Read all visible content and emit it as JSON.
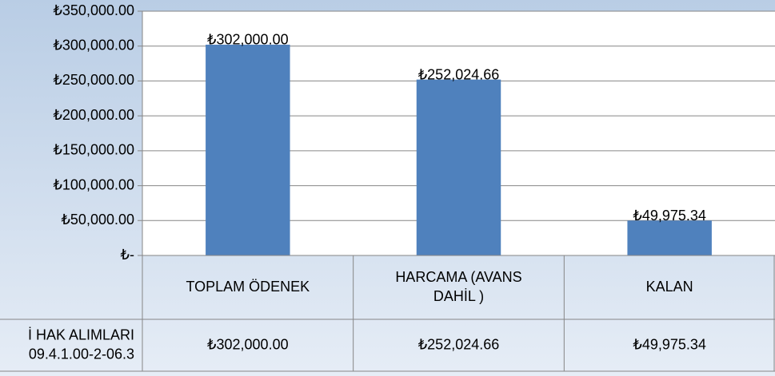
{
  "chart_data": {
    "type": "bar",
    "categories": [
      "TOPLAM ÖDENEK",
      "HARCAMA (AVANS\nDAHİL )",
      "KALAN"
    ],
    "series": [
      {
        "name": "İ HAK ALIMLARI\n09.4.1.00-2-06.3",
        "color": "#4f81bd",
        "values": [
          302000,
          252024.66,
          49975.34
        ],
        "value_labels": [
          "₺302,000.00",
          "₺252,024.66",
          "₺49,975.34"
        ]
      }
    ],
    "ylim": [
      0,
      350000
    ],
    "yticks": [
      {
        "value": 0,
        "label": "₺-"
      },
      {
        "value": 50000,
        "label": "₺50,000.00"
      },
      {
        "value": 100000,
        "label": "₺100,000.00"
      },
      {
        "value": 150000,
        "label": "₺150,000.00"
      },
      {
        "value": 200000,
        "label": "₺200,000.00"
      },
      {
        "value": 250000,
        "label": "₺250,000.00"
      },
      {
        "value": 300000,
        "label": "₺300,000.00"
      },
      {
        "value": 350000,
        "label": "₺350,000.00"
      }
    ],
    "grid": true,
    "data_table": true
  }
}
